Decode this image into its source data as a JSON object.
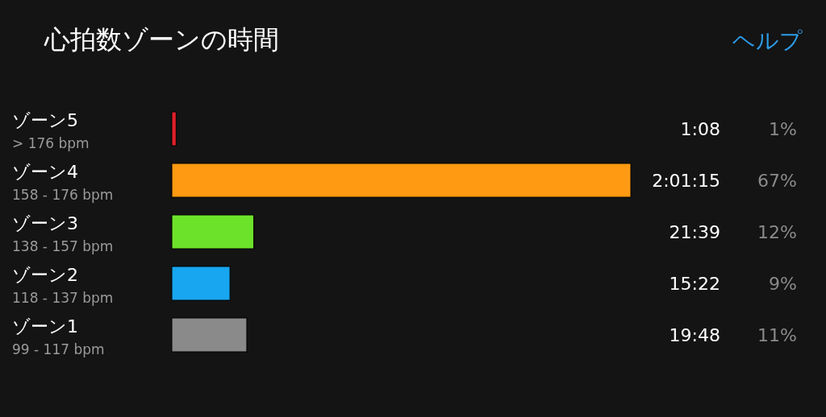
{
  "chart_data": {
    "type": "bar",
    "orientation": "horizontal",
    "title": "心拍数ゾーンの時間",
    "categories": [
      "ゾーン5\n> 176 bpm",
      "ゾーン4\n158 - 176 bpm",
      "ゾーン3\n138 - 157 bpm",
      "ゾーン2\n118 - 137 bpm",
      "ゾーン1\n99 - 117 bpm"
    ],
    "values": [
      68,
      7275,
      1299,
      922,
      1188
    ],
    "colors": [
      "#e0202a",
      "#ff9a12",
      "#6de22a",
      "#18a6f0",
      "#8a8a8a"
    ],
    "value_labels": [
      "1:08",
      "2:01:15",
      "21:39",
      "15:22",
      "19:48"
    ],
    "annotations": [
      "1%",
      "67%",
      "12%",
      "9%",
      "11%",
      "ヘルプ"
    ]
  }
}
